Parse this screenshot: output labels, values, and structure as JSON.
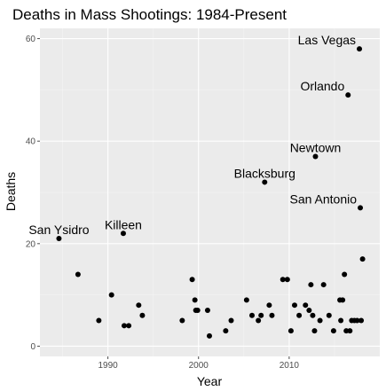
{
  "colors": {
    "panel": "#ebebeb",
    "grid_major": "#ffffff",
    "grid_minor": "#f5f5f5",
    "point": "#000000",
    "tick": "#4d4d4d"
  },
  "chart_data": {
    "type": "scatter",
    "title": "Deaths in Mass Shootings: 1984-Present",
    "xlabel": "Year",
    "ylabel": "Deaths",
    "xlim": [
      1982.5,
      2020.0
    ],
    "ylim": [
      -2,
      62
    ],
    "xticks": [
      1990,
      2000,
      2010
    ],
    "yticks": [
      0,
      20,
      40,
      60
    ],
    "grid": true,
    "legend": "none",
    "points": [
      {
        "x": 1984.6,
        "y": 21
      },
      {
        "x": 1986.7,
        "y": 14
      },
      {
        "x": 1989.0,
        "y": 5
      },
      {
        "x": 1990.4,
        "y": 10
      },
      {
        "x": 1991.7,
        "y": 22
      },
      {
        "x": 1991.8,
        "y": 4
      },
      {
        "x": 1992.3,
        "y": 4
      },
      {
        "x": 1993.4,
        "y": 8
      },
      {
        "x": 1993.8,
        "y": 6
      },
      {
        "x": 1998.2,
        "y": 5
      },
      {
        "x": 1999.3,
        "y": 13
      },
      {
        "x": 1999.6,
        "y": 9
      },
      {
        "x": 1999.7,
        "y": 7
      },
      {
        "x": 1999.9,
        "y": 7
      },
      {
        "x": 2001.0,
        "y": 7
      },
      {
        "x": 2001.2,
        "y": 2
      },
      {
        "x": 2003.0,
        "y": 3
      },
      {
        "x": 2003.6,
        "y": 5
      },
      {
        "x": 2005.3,
        "y": 9
      },
      {
        "x": 2005.9,
        "y": 6
      },
      {
        "x": 2006.6,
        "y": 5
      },
      {
        "x": 2006.9,
        "y": 6
      },
      {
        "x": 2007.3,
        "y": 32
      },
      {
        "x": 2007.8,
        "y": 8
      },
      {
        "x": 2008.1,
        "y": 6
      },
      {
        "x": 2009.3,
        "y": 13
      },
      {
        "x": 2009.8,
        "y": 13
      },
      {
        "x": 2010.2,
        "y": 3
      },
      {
        "x": 2010.6,
        "y": 8
      },
      {
        "x": 2011.1,
        "y": 6
      },
      {
        "x": 2011.8,
        "y": 8
      },
      {
        "x": 2012.2,
        "y": 7
      },
      {
        "x": 2012.4,
        "y": 12
      },
      {
        "x": 2012.6,
        "y": 6
      },
      {
        "x": 2012.8,
        "y": 3
      },
      {
        "x": 2012.9,
        "y": 37
      },
      {
        "x": 2013.4,
        "y": 5
      },
      {
        "x": 2013.8,
        "y": 12
      },
      {
        "x": 2014.4,
        "y": 6
      },
      {
        "x": 2014.9,
        "y": 3
      },
      {
        "x": 2015.6,
        "y": 9
      },
      {
        "x": 2015.7,
        "y": 5
      },
      {
        "x": 2015.9,
        "y": 9
      },
      {
        "x": 2016.1,
        "y": 14
      },
      {
        "x": 2016.3,
        "y": 3
      },
      {
        "x": 2016.5,
        "y": 49
      },
      {
        "x": 2016.7,
        "y": 3
      },
      {
        "x": 2016.9,
        "y": 5
      },
      {
        "x": 2017.2,
        "y": 5
      },
      {
        "x": 2017.5,
        "y": 5
      },
      {
        "x": 2017.75,
        "y": 58
      },
      {
        "x": 2017.85,
        "y": 27
      },
      {
        "x": 2017.95,
        "y": 5
      },
      {
        "x": 2018.1,
        "y": 17
      }
    ],
    "annotations": [
      {
        "text": "San Ysidro",
        "x": 1984.6,
        "y": 21,
        "anchor": "middle"
      },
      {
        "text": "Killeen",
        "x": 1991.7,
        "y": 22,
        "anchor": "middle"
      },
      {
        "text": "Blacksburg",
        "x": 2007.3,
        "y": 32,
        "anchor": "middle"
      },
      {
        "text": "Newtown",
        "x": 2012.9,
        "y": 37,
        "anchor": "middle"
      },
      {
        "text": "Orlando",
        "x": 2016.5,
        "y": 49,
        "anchor": "end"
      },
      {
        "text": "Las Vegas",
        "x": 2017.75,
        "y": 58,
        "anchor": "end"
      },
      {
        "text": "San Antonio",
        "x": 2017.85,
        "y": 27,
        "anchor": "end"
      }
    ]
  }
}
